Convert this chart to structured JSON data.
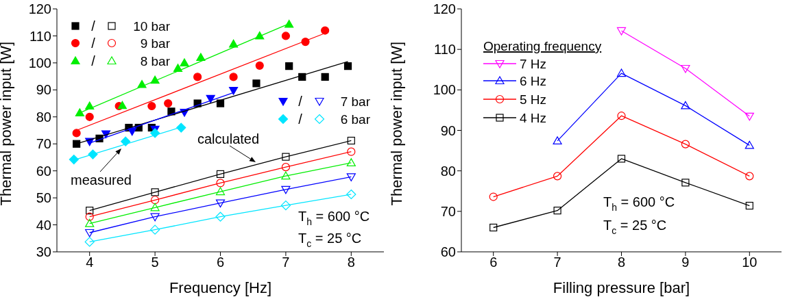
{
  "chart_data": [
    {
      "type": "scatter",
      "xlabel": "Frequency [Hz]",
      "ylabel": "Thermal power input [W]",
      "xlim": [
        3.5,
        8.5
      ],
      "ylim": [
        30,
        120
      ],
      "xticks": [
        4,
        5,
        6,
        7,
        8
      ],
      "yticks": [
        30,
        40,
        50,
        60,
        70,
        80,
        90,
        100,
        110,
        120
      ],
      "legend": "top left",
      "annotations": [
        "measured",
        "calculated",
        "T$_{h}$ = 600 °C",
        "T$_{c}$ = 25 °C",
        "/",
        "/",
        "/",
        "/",
        "/"
      ],
      "series": [
        {
          "color": "#000000",
          "marker": "square",
          "x": [
            3.8,
            4.15,
            4.6,
            4.75,
            4.95,
            5.25,
            5.65,
            6.0,
            6.55,
            7.05,
            7.25,
            7.6,
            7.95
          ],
          "values": [
            70,
            72,
            76,
            76,
            76,
            82,
            85,
            85,
            92.4,
            98.8,
            94.8,
            94.8,
            98.8
          ]
        },
        {
          "color": "#ff0000",
          "marker": "circle",
          "x": [
            3.8,
            4.0,
            4.45,
            4.95,
            5.2,
            5.65,
            6.2,
            6.6,
            7.0,
            7.3,
            7.6
          ],
          "values": [
            74,
            80,
            84,
            84,
            85,
            94.8,
            94.8,
            99,
            110,
            107.8,
            112
          ]
        },
        {
          "color": "#00ee00",
          "marker": "triangle",
          "x": [
            3.85,
            4.0,
            4.5,
            4.8,
            5.0,
            5.35,
            5.45,
            5.7,
            6.2,
            6.6,
            7.05
          ],
          "values": [
            81.5,
            84,
            84.2,
            92,
            93.6,
            98,
            100,
            102,
            107,
            110,
            114.3
          ]
        },
        {
          "color": "#0000ff",
          "marker": "triangle-down",
          "x": [
            4.0,
            4.25,
            4.65,
            5.0,
            5.45,
            5.85,
            6.2
          ],
          "values": [
            70.9,
            73.7,
            74.7,
            75.4,
            81.7,
            86.8,
            89.8
          ]
        },
        {
          "color": "#00e5ff",
          "marker": "diamond",
          "x": [
            3.76,
            4.05,
            4.55,
            5.0,
            5.4
          ],
          "values": [
            64.2,
            66.1,
            70.9,
            74,
            76
          ]
        },
        {
          "type": "line",
          "color": "#000000",
          "marker": "none",
          "x": [
            3.8,
            7.95
          ],
          "values": [
            70,
            100.5
          ]
        },
        {
          "type": "line",
          "color": "#ff0000",
          "marker": "none",
          "x": [
            3.8,
            7.6
          ],
          "values": [
            75,
            111
          ]
        },
        {
          "type": "line",
          "color": "#00ee00",
          "marker": "none",
          "x": [
            3.85,
            7.05
          ],
          "values": [
            81.5,
            114.5
          ]
        },
        {
          "type": "line",
          "color": "#0000ff",
          "marker": "none",
          "x": [
            4.0,
            6.2
          ],
          "values": [
            70.3,
            89
          ]
        },
        {
          "type": "line",
          "color": "#00e5ff",
          "marker": "none",
          "x": [
            3.76,
            5.4
          ],
          "values": [
            64,
            76.2
          ]
        },
        {
          "name": "10 bar",
          "type": "line",
          "color": "#000000",
          "marker": "square",
          "x": [
            4,
            5,
            6,
            7,
            8
          ],
          "values": [
            45.3,
            52.1,
            58.8,
            65.2,
            71.2
          ]
        },
        {
          "name": "9 bar",
          "type": "line",
          "color": "#ff0000",
          "marker": "circle",
          "x": [
            4,
            5,
            6,
            7,
            8
          ],
          "values": [
            43,
            49.2,
            55.5,
            61.4,
            67.1
          ]
        },
        {
          "name": "8 bar",
          "type": "line",
          "color": "#00ee00",
          "marker": "triangle",
          "x": [
            4,
            5,
            6,
            7,
            8
          ],
          "values": [
            40.5,
            46.4,
            52.3,
            58.1,
            63
          ]
        },
        {
          "name": "7 bar",
          "type": "line",
          "color": "#0000ff",
          "marker": "triangle-down",
          "x": [
            4,
            5,
            6,
            7,
            8
          ],
          "values": [
            37.1,
            43,
            48.1,
            53.1,
            57.8
          ]
        },
        {
          "name": "6 bar",
          "type": "line",
          "color": "#00e5ff",
          "marker": "diamond",
          "x": [
            4,
            5,
            6,
            7,
            8
          ],
          "values": [
            33.7,
            38.2,
            43,
            47.2,
            51.3
          ]
        }
      ]
    },
    {
      "type": "line",
      "xlabel": "Filling pressure [bar]",
      "ylabel": "Thermal power input [W]",
      "xlim": [
        5.5,
        10.5
      ],
      "ylim": [
        60,
        120
      ],
      "xticks": [
        6,
        7,
        8,
        9,
        10
      ],
      "yticks": [
        60,
        70,
        80,
        90,
        100,
        110,
        120
      ],
      "legend": "top left",
      "legend_title": "Operating frequency",
      "annotations": [
        "T$_{h}$ = 600 °C",
        "T$_{c}$ = 25 °C"
      ],
      "x": [
        6,
        7,
        8,
        9,
        10
      ],
      "series": [
        {
          "name": "7 Hz",
          "color": "#ff00ff",
          "marker": "triangle-down",
          "values": [
            null,
            null,
            114.6,
            105.3,
            93.5
          ]
        },
        {
          "name": "6 Hz",
          "color": "#0000ff",
          "marker": "triangle",
          "values": [
            null,
            87.4,
            104.1,
            96.1,
            86.3
          ]
        },
        {
          "name": "5 Hz",
          "color": "#ff0000",
          "marker": "circle",
          "values": [
            73.6,
            78.7,
            93.6,
            86.6,
            78.7
          ]
        },
        {
          "name": "4 Hz",
          "color": "#000000",
          "marker": "square",
          "values": [
            66,
            70.2,
            83,
            77.1,
            71.4
          ]
        }
      ]
    }
  ]
}
